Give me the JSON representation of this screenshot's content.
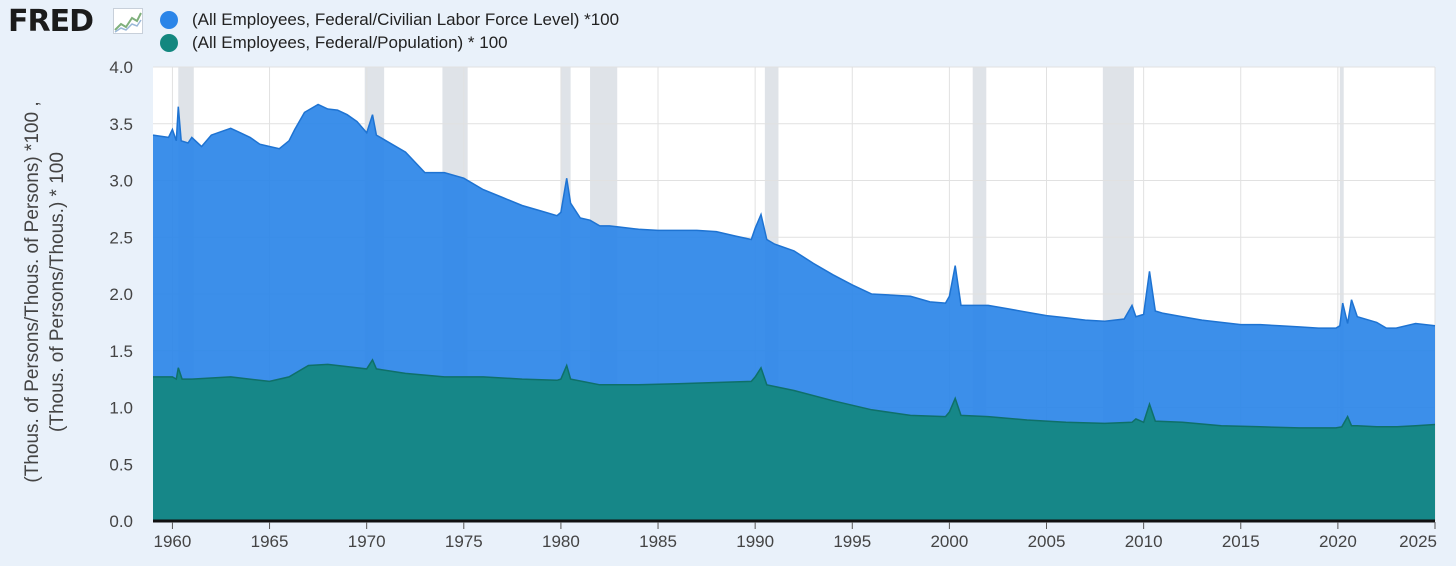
{
  "brand": {
    "logo_text": "FRED"
  },
  "colors": {
    "series1": "#2b85e8",
    "series2": "#13877f",
    "recession": "#dfe3e8",
    "background": "#e9f1fa"
  },
  "chart_data": {
    "type": "area",
    "ylabel_line1": "(Thous. of Persons/Thous. of Persons) *100 ,",
    "ylabel_line2": "(Thous. of Persons/Thous.) * 100",
    "xlim": [
      1959,
      2025
    ],
    "ylim": [
      0,
      4
    ],
    "yticks": [
      "0.0",
      "0.5",
      "1.0",
      "1.5",
      "2.0",
      "2.5",
      "3.0",
      "3.5",
      "4.0"
    ],
    "xticks": [
      "1960",
      "1965",
      "1970",
      "1975",
      "1980",
      "1985",
      "1990",
      "1995",
      "2000",
      "2005",
      "2010",
      "2015",
      "2020",
      "2025"
    ],
    "grid": true,
    "legend_position": "top-left",
    "recessions": [
      [
        1960.3,
        1961.1
      ],
      [
        1969.9,
        1970.9
      ],
      [
        1973.9,
        1975.2
      ],
      [
        1980.0,
        1980.5
      ],
      [
        1981.5,
        1982.9
      ],
      [
        1990.5,
        1991.2
      ],
      [
        2001.2,
        2001.9
      ],
      [
        2007.9,
        2009.5
      ],
      [
        2020.1,
        2020.3
      ]
    ],
    "series": [
      {
        "name": "(All Employees, Federal/Civilian Labor Force Level) *100",
        "x": [
          1959,
          1959.8,
          1960.0,
          1960.2,
          1960.3,
          1960.45,
          1960.8,
          1961.0,
          1961.5,
          1962,
          1962.5,
          1963,
          1963.5,
          1964,
          1964.5,
          1965,
          1965.5,
          1966,
          1966.3,
          1966.8,
          1967.5,
          1968,
          1968.5,
          1969,
          1969.5,
          1970,
          1970.3,
          1970.5,
          1971,
          1972,
          1973,
          1974,
          1975,
          1976,
          1977,
          1978,
          1979,
          1979.8,
          1980.0,
          1980.3,
          1980.5,
          1981,
          1981.5,
          1982,
          1982.5,
          1983,
          1984,
          1985,
          1986,
          1987,
          1988,
          1989,
          1989.8,
          1990.0,
          1990.3,
          1990.6,
          1991,
          1992,
          1993,
          1994,
          1995,
          1996,
          1997,
          1998,
          1999,
          1999.8,
          2000.0,
          2000.3,
          2000.6,
          2001,
          2002,
          2003,
          2004,
          2005,
          2006,
          2007,
          2008,
          2009,
          2009.4,
          2009.6,
          2010.0,
          2010.3,
          2010.6,
          2011,
          2012,
          2013,
          2014,
          2015,
          2016,
          2017,
          2018,
          2019,
          2019.9,
          2020.1,
          2020.25,
          2020.5,
          2020.7,
          2021,
          2022,
          2022.5,
          2023,
          2024,
          2025
        ],
        "values": [
          3.4,
          3.38,
          3.45,
          3.35,
          3.65,
          3.35,
          3.33,
          3.38,
          3.3,
          3.4,
          3.43,
          3.46,
          3.42,
          3.38,
          3.32,
          3.3,
          3.28,
          3.35,
          3.45,
          3.6,
          3.67,
          3.63,
          3.62,
          3.58,
          3.52,
          3.42,
          3.58,
          3.4,
          3.35,
          3.25,
          3.07,
          3.07,
          3.02,
          2.92,
          2.85,
          2.78,
          2.73,
          2.69,
          2.72,
          3.02,
          2.8,
          2.67,
          2.65,
          2.6,
          2.6,
          2.59,
          2.57,
          2.56,
          2.56,
          2.56,
          2.55,
          2.51,
          2.48,
          2.58,
          2.7,
          2.48,
          2.44,
          2.38,
          2.27,
          2.17,
          2.08,
          2.0,
          1.99,
          1.98,
          1.93,
          1.92,
          1.98,
          2.25,
          1.9,
          1.9,
          1.9,
          1.87,
          1.84,
          1.81,
          1.79,
          1.77,
          1.76,
          1.78,
          1.9,
          1.8,
          1.82,
          2.2,
          1.85,
          1.83,
          1.8,
          1.77,
          1.75,
          1.73,
          1.73,
          1.72,
          1.71,
          1.7,
          1.7,
          1.72,
          1.92,
          1.74,
          1.95,
          1.8,
          1.75,
          1.7,
          1.7,
          1.74,
          1.72
        ]
      },
      {
        "name": "(All Employees, Federal/Population) * 100",
        "x": [
          1959,
          1960.0,
          1960.2,
          1960.3,
          1960.5,
          1961,
          1963,
          1965,
          1966,
          1967,
          1968,
          1969,
          1970,
          1970.3,
          1970.5,
          1972,
          1974,
          1976,
          1978,
          1979.8,
          1980.0,
          1980.3,
          1980.5,
          1982,
          1984,
          1986,
          1988,
          1989.8,
          1990.0,
          1990.3,
          1990.6,
          1992,
          1994,
          1996,
          1998,
          1999.8,
          2000.0,
          2000.3,
          2000.6,
          2002,
          2004,
          2006,
          2008,
          2009.4,
          2009.6,
          2010.0,
          2010.3,
          2010.6,
          2012,
          2014,
          2016,
          2018,
          2019.9,
          2020.2,
          2020.5,
          2020.7,
          2021,
          2022,
          2023,
          2024,
          2025
        ],
        "values": [
          1.27,
          1.27,
          1.25,
          1.35,
          1.25,
          1.25,
          1.27,
          1.23,
          1.27,
          1.37,
          1.38,
          1.36,
          1.34,
          1.42,
          1.34,
          1.3,
          1.27,
          1.27,
          1.25,
          1.24,
          1.25,
          1.37,
          1.25,
          1.2,
          1.2,
          1.21,
          1.22,
          1.23,
          1.27,
          1.35,
          1.2,
          1.15,
          1.06,
          0.98,
          0.93,
          0.92,
          0.96,
          1.08,
          0.93,
          0.92,
          0.89,
          0.87,
          0.86,
          0.87,
          0.9,
          0.87,
          1.03,
          0.88,
          0.87,
          0.84,
          0.83,
          0.82,
          0.82,
          0.83,
          0.92,
          0.84,
          0.84,
          0.83,
          0.83,
          0.84,
          0.85
        ]
      }
    ]
  }
}
